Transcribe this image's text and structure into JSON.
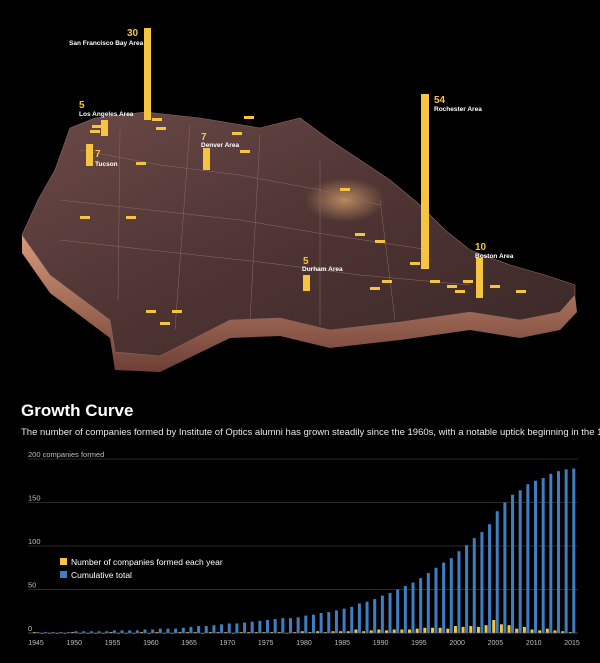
{
  "chart_data": [
    {
      "type": "map",
      "markers": [
        {
          "name": "San Francisco Bay Area",
          "value": 30
        },
        {
          "name": "Rochester Area",
          "value": 54
        },
        {
          "name": "Los Angeles Area",
          "value": 5
        },
        {
          "name": "Denver Area",
          "value": 7
        },
        {
          "name": "Tucson",
          "value": 7
        },
        {
          "name": "Durham Area",
          "value": 5
        },
        {
          "name": "Boston Area",
          "value": 10
        }
      ]
    },
    {
      "type": "bar",
      "title": "Growth Curve",
      "subtitle": "The number of companies formed by Institute of Optics alumni has grown steadily since the 1960s, with a notable uptick beginning in the 1990s.",
      "ylabel": "200 companies formed",
      "ylim": [
        0,
        200
      ],
      "y_ticks": [
        "0",
        "50",
        "100",
        "150"
      ],
      "x": [
        1945,
        1946,
        1947,
        1948,
        1949,
        1950,
        1951,
        1952,
        1953,
        1954,
        1955,
        1956,
        1957,
        1958,
        1959,
        1960,
        1961,
        1962,
        1963,
        1964,
        1965,
        1966,
        1967,
        1968,
        1969,
        1970,
        1971,
        1972,
        1973,
        1974,
        1975,
        1976,
        1977,
        1978,
        1979,
        1980,
        1981,
        1982,
        1983,
        1984,
        1985,
        1986,
        1987,
        1988,
        1989,
        1990,
        1991,
        1992,
        1993,
        1994,
        1995,
        1996,
        1997,
        1998,
        1999,
        2000,
        2001,
        2002,
        2003,
        2004,
        2005,
        2006,
        2007,
        2008,
        2009,
        2010,
        2011,
        2012,
        2013,
        2014,
        2015
      ],
      "x_ticks": [
        "1945",
        "1950",
        "1955",
        "1960",
        "1965",
        "1970",
        "1975",
        "1980",
        "1985",
        "1990",
        "1995",
        "2000",
        "2005",
        "2010",
        "2015"
      ],
      "series": [
        {
          "name": "Number of companies formed each year",
          "color": "#f5c542",
          "values": [
            1,
            0,
            0,
            0,
            0,
            1,
            0,
            0,
            0,
            0,
            1,
            0,
            0,
            0,
            1,
            0,
            1,
            0,
            0,
            1,
            1,
            1,
            0,
            1,
            1,
            1,
            0,
            1,
            1,
            1,
            1,
            1,
            1,
            0,
            1,
            2,
            1,
            2,
            1,
            2,
            2,
            2,
            4,
            2,
            3,
            4,
            3,
            4,
            4,
            4,
            5,
            6,
            6,
            6,
            5,
            8,
            7,
            8,
            7,
            9,
            15,
            10,
            9,
            5,
            7,
            4,
            3,
            5,
            3,
            2,
            1
          ]
        },
        {
          "name": "Cumulative total",
          "color": "#3f7fc1",
          "values": [
            1,
            1,
            1,
            1,
            1,
            2,
            2,
            2,
            2,
            2,
            3,
            3,
            3,
            3,
            4,
            4,
            5,
            5,
            5,
            6,
            7,
            8,
            8,
            9,
            10,
            11,
            11,
            12,
            13,
            14,
            15,
            16,
            17,
            17,
            18,
            20,
            21,
            23,
            24,
            26,
            28,
            30,
            34,
            36,
            39,
            43,
            46,
            50,
            54,
            58,
            63,
            69,
            75,
            81,
            86,
            94,
            101,
            109,
            116,
            125,
            140,
            150,
            159,
            164,
            171,
            175,
            178,
            183,
            186,
            188,
            189
          ]
        }
      ]
    }
  ],
  "colors": {
    "bar": "#f5c542",
    "cumulative": "#3f7fc1",
    "map": "#5a3b3a"
  }
}
